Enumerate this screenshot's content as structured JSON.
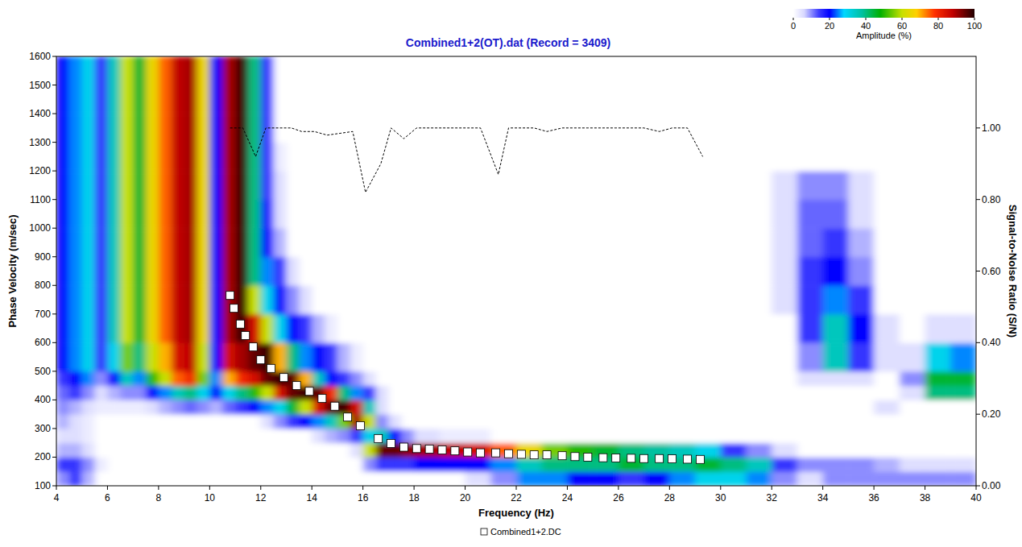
{
  "chart_data": {
    "type": "heatmap",
    "title": "Combined1+2(OT).dat (Record = 3409)",
    "x_label": "Frequency (Hz)",
    "y_label": "Phase Velocity (m/sec)",
    "y2_label": "Signal-to-Noise Ratio (S/N)",
    "xlim": [
      4,
      40
    ],
    "xticks": [
      4,
      6,
      8,
      10,
      12,
      14,
      16,
      18,
      20,
      22,
      24,
      26,
      28,
      30,
      32,
      34,
      36,
      38,
      40
    ],
    "ylim": [
      100,
      1600
    ],
    "yticks": [
      100,
      200,
      300,
      400,
      500,
      600,
      700,
      800,
      900,
      1000,
      1100,
      1200,
      1300,
      1400,
      1500,
      1600
    ],
    "y2lim": [
      0,
      1.2
    ],
    "y2ticks": [
      {
        "value": 0,
        "label": "0.00"
      },
      {
        "value": 0.2,
        "label": "0.20"
      },
      {
        "value": 0.4,
        "label": "0.40"
      },
      {
        "value": 0.6,
        "label": "0.60"
      },
      {
        "value": 0.8,
        "label": "0.80"
      },
      {
        "value": 1.0,
        "label": "1.00"
      }
    ],
    "grid": false,
    "legend": "bottom",
    "heatmap": {
      "x_edges": [
        4,
        4.5,
        5,
        5.5,
        6,
        6.5,
        7,
        7.5,
        8,
        8.5,
        9,
        9.5,
        10,
        10.5,
        11,
        11.5,
        12,
        12.5,
        13,
        13.5,
        14,
        14.5,
        15,
        15.5,
        16,
        16.5,
        17,
        17.5,
        18,
        19,
        20,
        21,
        22,
        23,
        24,
        25,
        26,
        27,
        28,
        29,
        30,
        31,
        32,
        33,
        34,
        35,
        36,
        37,
        38,
        39,
        40
      ],
      "y_edges": [
        100,
        150,
        200,
        250,
        300,
        350,
        400,
        450,
        500,
        600,
        700,
        800,
        900,
        1000,
        1100,
        1200,
        1300,
        1400,
        1500,
        1600
      ],
      "cells": [
        [
          10,
          15,
          8,
          0,
          0,
          0,
          0,
          0,
          0,
          0,
          0,
          0,
          0,
          0,
          0,
          0,
          0,
          0,
          0,
          0,
          0,
          0,
          0,
          0,
          0,
          0,
          0,
          0,
          0,
          0,
          5,
          10,
          25,
          25,
          20,
          20,
          15,
          20,
          25,
          30,
          30,
          25,
          10,
          5,
          10,
          10,
          10,
          10,
          10,
          10
        ],
        [
          15,
          15,
          10,
          3,
          0,
          0,
          0,
          0,
          0,
          0,
          0,
          0,
          0,
          0,
          0,
          0,
          0,
          0,
          0,
          0,
          0,
          0,
          0,
          0,
          10,
          15,
          15,
          15,
          20,
          20,
          20,
          25,
          35,
          40,
          40,
          40,
          45,
          40,
          40,
          45,
          40,
          35,
          15,
          10,
          10,
          10,
          8,
          5,
          5,
          5
        ],
        [
          8,
          8,
          5,
          0,
          0,
          0,
          0,
          0,
          0,
          0,
          0,
          0,
          0,
          0,
          0,
          0,
          0,
          0,
          0,
          0,
          0,
          0,
          0,
          5,
          60,
          95,
          95,
          92,
          90,
          88,
          85,
          75,
          65,
          55,
          50,
          45,
          40,
          38,
          35,
          30,
          15,
          10,
          5,
          0,
          0,
          0,
          0,
          0,
          0,
          0
        ],
        [
          5,
          5,
          3,
          0,
          0,
          0,
          0,
          0,
          0,
          0,
          0,
          0,
          0,
          0,
          0,
          0,
          0,
          0,
          0,
          0,
          5,
          8,
          10,
          15,
          30,
          35,
          20,
          10,
          5,
          3,
          3,
          0,
          0,
          0,
          0,
          0,
          0,
          0,
          0,
          0,
          0,
          0,
          0,
          0,
          0,
          0,
          0,
          0,
          0,
          0
        ],
        [
          8,
          5,
          3,
          0,
          0,
          0,
          0,
          0,
          0,
          0,
          0,
          0,
          0,
          0,
          0,
          0,
          5,
          10,
          15,
          20,
          25,
          35,
          55,
          90,
          60,
          10,
          5,
          0,
          0,
          0,
          0,
          0,
          0,
          0,
          0,
          0,
          0,
          0,
          0,
          0,
          0,
          0,
          0,
          0,
          0,
          0,
          0,
          0,
          0,
          0
        ],
        [
          10,
          8,
          5,
          3,
          3,
          3,
          3,
          5,
          8,
          10,
          12,
          10,
          8,
          12,
          15,
          20,
          25,
          30,
          45,
          60,
          85,
          95,
          98,
          85,
          35,
          5,
          0,
          0,
          0,
          0,
          0,
          0,
          0,
          0,
          0,
          0,
          0,
          0,
          0,
          0,
          0,
          0,
          0,
          0,
          0,
          0,
          5,
          0,
          0,
          0
        ],
        [
          12,
          15,
          10,
          5,
          8,
          10,
          10,
          20,
          25,
          35,
          40,
          30,
          20,
          30,
          40,
          50,
          60,
          85,
          95,
          98,
          95,
          80,
          40,
          25,
          15,
          5,
          0,
          0,
          0,
          0,
          0,
          0,
          0,
          0,
          0,
          0,
          0,
          0,
          0,
          0,
          0,
          0,
          0,
          0,
          0,
          0,
          0,
          5,
          40,
          40
        ],
        [
          15,
          20,
          25,
          10,
          20,
          35,
          25,
          50,
          60,
          75,
          80,
          55,
          25,
          70,
          80,
          85,
          95,
          98,
          95,
          70,
          35,
          20,
          15,
          10,
          5,
          0,
          0,
          0,
          0,
          0,
          0,
          0,
          0,
          0,
          0,
          0,
          0,
          0,
          0,
          0,
          0,
          0,
          0,
          5,
          5,
          5,
          0,
          10,
          45,
          45
        ],
        [
          20,
          25,
          30,
          15,
          30,
          55,
          40,
          60,
          70,
          85,
          88,
          60,
          20,
          85,
          90,
          95,
          98,
          70,
          40,
          25,
          20,
          15,
          8,
          3,
          0,
          0,
          0,
          0,
          0,
          0,
          0,
          0,
          0,
          0,
          0,
          0,
          0,
          0,
          0,
          0,
          0,
          0,
          0,
          10,
          35,
          15,
          5,
          5,
          30,
          25
        ],
        [
          20,
          25,
          30,
          15,
          35,
          60,
          45,
          65,
          75,
          88,
          90,
          65,
          20,
          90,
          98,
          85,
          60,
          30,
          20,
          15,
          8,
          3,
          0,
          0,
          0,
          0,
          0,
          0,
          0,
          0,
          0,
          0,
          0,
          0,
          0,
          0,
          0,
          0,
          0,
          0,
          0,
          0,
          0,
          15,
          35,
          20,
          5,
          0,
          5,
          5
        ],
        [
          20,
          25,
          30,
          15,
          35,
          60,
          45,
          65,
          75,
          88,
          90,
          65,
          20,
          90,
          98,
          60,
          30,
          20,
          10,
          5,
          0,
          0,
          0,
          0,
          0,
          0,
          0,
          0,
          0,
          0,
          0,
          0,
          0,
          0,
          0,
          0,
          0,
          0,
          0,
          0,
          0,
          0,
          5,
          15,
          25,
          15,
          0,
          0,
          0,
          0
        ],
        [
          20,
          25,
          30,
          15,
          35,
          60,
          45,
          65,
          75,
          88,
          90,
          65,
          20,
          90,
          98,
          40,
          25,
          15,
          5,
          0,
          0,
          0,
          0,
          0,
          0,
          0,
          0,
          0,
          0,
          0,
          0,
          0,
          0,
          0,
          0,
          0,
          0,
          0,
          0,
          0,
          0,
          0,
          5,
          15,
          20,
          10,
          0,
          0,
          0,
          0
        ],
        [
          20,
          25,
          30,
          15,
          35,
          60,
          45,
          65,
          75,
          88,
          90,
          65,
          20,
          90,
          98,
          40,
          20,
          8,
          0,
          0,
          0,
          0,
          0,
          0,
          0,
          0,
          0,
          0,
          0,
          0,
          0,
          0,
          0,
          0,
          0,
          0,
          0,
          0,
          0,
          0,
          0,
          0,
          5,
          12,
          15,
          8,
          0,
          0,
          0,
          0
        ],
        [
          20,
          25,
          30,
          15,
          35,
          60,
          45,
          65,
          75,
          88,
          90,
          65,
          20,
          90,
          98,
          40,
          18,
          5,
          0,
          0,
          0,
          0,
          0,
          0,
          0,
          0,
          0,
          0,
          0,
          0,
          0,
          0,
          0,
          0,
          0,
          0,
          0,
          0,
          0,
          0,
          0,
          0,
          5,
          12,
          12,
          5,
          0,
          0,
          0,
          0
        ],
        [
          20,
          25,
          30,
          15,
          35,
          60,
          45,
          65,
          75,
          88,
          90,
          65,
          20,
          90,
          98,
          40,
          15,
          5,
          0,
          0,
          0,
          0,
          0,
          0,
          0,
          0,
          0,
          0,
          0,
          0,
          0,
          0,
          0,
          0,
          0,
          0,
          0,
          0,
          0,
          0,
          0,
          0,
          5,
          10,
          10,
          5,
          0,
          0,
          0,
          0
        ],
        [
          20,
          25,
          30,
          15,
          35,
          60,
          45,
          65,
          75,
          88,
          90,
          65,
          20,
          90,
          98,
          40,
          15,
          3,
          0,
          0,
          0,
          0,
          0,
          0,
          0,
          0,
          0,
          0,
          0,
          0,
          0,
          0,
          0,
          0,
          0,
          0,
          0,
          0,
          0,
          0,
          0,
          0,
          0,
          0,
          0,
          0,
          0,
          0,
          0,
          0
        ],
        [
          20,
          25,
          30,
          15,
          35,
          60,
          45,
          65,
          75,
          88,
          90,
          65,
          20,
          90,
          98,
          40,
          15,
          0,
          0,
          0,
          0,
          0,
          0,
          0,
          0,
          0,
          0,
          0,
          0,
          0,
          0,
          0,
          0,
          0,
          0,
          0,
          0,
          0,
          0,
          0,
          0,
          0,
          0,
          0,
          0,
          0,
          0,
          0,
          0,
          0
        ],
        [
          20,
          25,
          30,
          15,
          35,
          60,
          45,
          65,
          75,
          88,
          90,
          65,
          20,
          90,
          98,
          40,
          15,
          0,
          0,
          0,
          0,
          0,
          0,
          0,
          0,
          0,
          0,
          0,
          0,
          0,
          0,
          0,
          0,
          0,
          0,
          0,
          0,
          0,
          0,
          0,
          0,
          0,
          0,
          0,
          0,
          0,
          0,
          0,
          0,
          0
        ],
        [
          20,
          25,
          30,
          15,
          35,
          60,
          45,
          65,
          75,
          88,
          90,
          65,
          20,
          90,
          98,
          40,
          15,
          0,
          0,
          0,
          0,
          0,
          0,
          0,
          0,
          0,
          0,
          0,
          0,
          0,
          0,
          0,
          0,
          0,
          0,
          0,
          0,
          0,
          0,
          0,
          0,
          0,
          0,
          0,
          0,
          0,
          0,
          0,
          0,
          0
        ]
      ],
      "colorbar": {
        "range": [
          0,
          100
        ],
        "ticks": [
          0,
          20,
          40,
          60,
          80,
          100
        ],
        "label": "Amplitude (%)"
      }
    },
    "series": [
      {
        "name": "Combined1+2.DC",
        "type": "scatter",
        "marker": "square",
        "color": "#ffffff",
        "x": [
          10.8,
          10.95,
          11.2,
          11.4,
          11.7,
          12.0,
          12.4,
          12.9,
          13.4,
          13.9,
          14.4,
          14.9,
          15.4,
          15.9,
          16.6,
          17.1,
          17.6,
          18.1,
          18.6,
          19.1,
          19.6,
          20.1,
          20.6,
          21.2,
          21.7,
          22.2,
          22.7,
          23.2,
          23.8,
          24.3,
          24.8,
          25.4,
          25.9,
          26.5,
          27.0,
          27.6,
          28.1,
          28.7,
          29.2
        ],
        "values": [
          765,
          720,
          665,
          625,
          585,
          540,
          510,
          478,
          450,
          430,
          405,
          378,
          340,
          310,
          265,
          248,
          235,
          230,
          228,
          225,
          222,
          218,
          215,
          215,
          212,
          210,
          208,
          208,
          205,
          202,
          200,
          198,
          197,
          196,
          195,
          195,
          194,
          193,
          192
        ]
      },
      {
        "type": "line",
        "line_style": "dashed",
        "color": "#000000",
        "axis": "y2",
        "x": [
          10.8,
          11.3,
          11.8,
          12.2,
          12.7,
          13.2,
          13.6,
          14.1,
          14.6,
          15.1,
          15.6,
          16.1,
          16.7,
          17.1,
          17.6,
          18.1,
          18.6,
          19.1,
          19.6,
          20.1,
          20.6,
          21.3,
          21.7,
          22.2,
          22.7,
          23.2,
          23.8,
          24.3,
          24.8,
          25.4,
          25.9,
          26.5,
          27.0,
          27.6,
          28.1,
          28.7,
          29.3
        ],
        "values": [
          1.0,
          1.0,
          0.92,
          1.0,
          1.0,
          1.0,
          0.99,
          0.99,
          0.98,
          0.985,
          0.99,
          0.82,
          0.9,
          1.0,
          0.97,
          1.0,
          1.0,
          1.0,
          1.0,
          1.0,
          1.0,
          0.87,
          1.0,
          1.0,
          1.0,
          0.99,
          1.0,
          1.0,
          1.0,
          1.0,
          1.0,
          1.0,
          1.0,
          0.99,
          1.0,
          1.0,
          0.92
        ]
      }
    ]
  }
}
